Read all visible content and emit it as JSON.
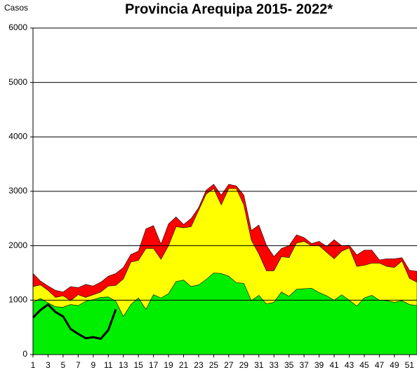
{
  "chart_data": {
    "type": "area",
    "title": "Provincia Arequipa  2015- 2022*",
    "y_label": "Casos",
    "x": [
      1,
      2,
      3,
      4,
      5,
      6,
      7,
      8,
      9,
      10,
      11,
      12,
      13,
      14,
      15,
      16,
      17,
      18,
      19,
      20,
      21,
      22,
      23,
      24,
      25,
      26,
      27,
      28,
      29,
      30,
      31,
      32,
      33,
      34,
      35,
      36,
      37,
      38,
      39,
      40,
      41,
      42,
      43,
      44,
      45,
      46,
      47,
      48,
      49,
      50,
      51,
      52
    ],
    "xlim": [
      1,
      52
    ],
    "xticks": [
      1,
      3,
      5,
      7,
      9,
      11,
      13,
      15,
      17,
      19,
      21,
      23,
      25,
      27,
      29,
      31,
      33,
      35,
      37,
      39,
      41,
      43,
      45,
      47,
      49,
      51
    ],
    "ylim": [
      0,
      6000
    ],
    "yticks": [
      0,
      1000,
      2000,
      3000,
      4000,
      5000,
      6000
    ],
    "grid": true,
    "series": [
      {
        "color": "#ff0000",
        "values": [
          1490,
          1350,
          1260,
          1180,
          1150,
          1250,
          1230,
          1290,
          1260,
          1330,
          1440,
          1490,
          1600,
          1840,
          1900,
          2310,
          2370,
          2030,
          2400,
          2530,
          2390,
          2500,
          2700,
          3020,
          3130,
          2930,
          3130,
          3100,
          2930,
          2280,
          2380,
          2010,
          1800,
          1950,
          2000,
          2200,
          2150,
          2040,
          2080,
          1990,
          2110,
          2000,
          2010,
          1830,
          1920,
          1920,
          1740,
          1760,
          1760,
          1780,
          1550,
          1530
        ]
      },
      {
        "color": "#ffff00",
        "values": [
          1250,
          1280,
          1180,
          1050,
          1080,
          990,
          1100,
          1050,
          1100,
          1150,
          1260,
          1270,
          1390,
          1700,
          1730,
          1950,
          1950,
          1750,
          2000,
          2350,
          2330,
          2350,
          2650,
          2950,
          3050,
          2750,
          3050,
          3050,
          2750,
          2100,
          1850,
          1540,
          1540,
          1800,
          1780,
          2050,
          2080,
          2000,
          2000,
          1880,
          1760,
          1900,
          1960,
          1620,
          1640,
          1680,
          1680,
          1620,
          1600,
          1720,
          1400,
          1330
        ]
      },
      {
        "color": "#00ee00",
        "values": [
          960,
          1030,
          950,
          880,
          870,
          920,
          900,
          980,
          1010,
          1050,
          1060,
          980,
          700,
          920,
          1040,
          830,
          1100,
          1040,
          1120,
          1340,
          1370,
          1250,
          1280,
          1380,
          1500,
          1490,
          1440,
          1320,
          1310,
          990,
          1090,
          930,
          960,
          1150,
          1070,
          1200,
          1210,
          1220,
          1140,
          1080,
          1000,
          1100,
          1000,
          890,
          1040,
          1090,
          1000,
          990,
          960,
          990,
          920,
          900
        ]
      },
      {
        "color": "#000000",
        "type": "line",
        "values": [
          680,
          820,
          920,
          780,
          700,
          470,
          380,
          300,
          320,
          290,
          450,
          830,
          null,
          null,
          null,
          null,
          null,
          null,
          null,
          null,
          null,
          null,
          null,
          null,
          null,
          null,
          null,
          null,
          null,
          null,
          null,
          null,
          null,
          null,
          null,
          null,
          null,
          null,
          null,
          null,
          null,
          null,
          null,
          null,
          null,
          null,
          null,
          null,
          null,
          null,
          null,
          null
        ]
      }
    ]
  }
}
